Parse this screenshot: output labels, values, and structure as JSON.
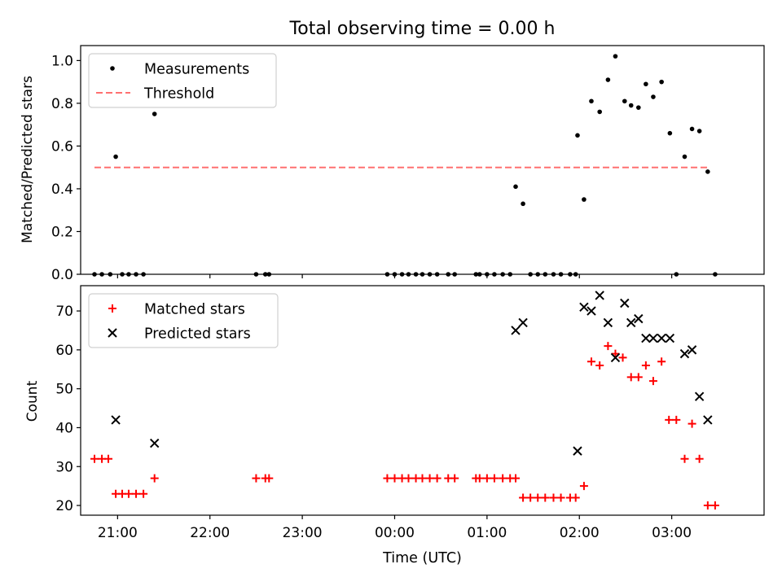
{
  "title": "Total observing time = 0.00 h",
  "xlabel": "Time (UTC)",
  "chart_data": [
    {
      "type": "scatter",
      "ylabel": "Matched/Predicted stars",
      "ylim": [
        0,
        1.07
      ],
      "yticks": [
        "0.0",
        "0.2",
        "0.4",
        "0.6",
        "0.8",
        "1.0"
      ],
      "legend": {
        "placement": "top-left",
        "entries": [
          "Measurements",
          "Threshold"
        ]
      },
      "threshold": {
        "name": "Threshold",
        "y": 0.5,
        "x_range": [
          20.75,
          27.41
        ],
        "color": "#ff7070"
      },
      "series": [
        {
          "name": "Measurements",
          "color": "#000000",
          "marker": "dot",
          "points": [
            [
              20.75,
              0
            ],
            [
              20.83,
              0
            ],
            [
              20.92,
              0
            ],
            [
              20.98,
              0.55
            ],
            [
              21.05,
              0
            ],
            [
              21.12,
              0
            ],
            [
              21.2,
              0
            ],
            [
              21.28,
              0
            ],
            [
              21.4,
              0.75
            ],
            [
              22.5,
              0
            ],
            [
              22.6,
              0
            ],
            [
              22.64,
              0
            ],
            [
              23.92,
              0
            ],
            [
              24.0,
              0
            ],
            [
              24.08,
              0
            ],
            [
              24.15,
              0
            ],
            [
              24.23,
              0
            ],
            [
              24.3,
              0
            ],
            [
              24.38,
              0
            ],
            [
              24.46,
              0
            ],
            [
              24.58,
              0
            ],
            [
              24.65,
              0
            ],
            [
              24.88,
              0
            ],
            [
              24.92,
              0
            ],
            [
              25.0,
              0
            ],
            [
              25.08,
              0
            ],
            [
              25.17,
              0
            ],
            [
              25.25,
              0
            ],
            [
              25.31,
              0.41
            ],
            [
              25.39,
              0.33
            ],
            [
              25.47,
              0
            ],
            [
              25.55,
              0
            ],
            [
              25.63,
              0
            ],
            [
              25.72,
              0
            ],
            [
              25.8,
              0
            ],
            [
              25.9,
              0
            ],
            [
              25.96,
              0
            ],
            [
              25.98,
              0.65
            ],
            [
              26.05,
              0.35
            ],
            [
              26.13,
              0.81
            ],
            [
              26.22,
              0.76
            ],
            [
              26.31,
              0.91
            ],
            [
              26.39,
              1.02
            ],
            [
              26.49,
              0.81
            ],
            [
              26.56,
              0.79
            ],
            [
              26.64,
              0.78
            ],
            [
              26.72,
              0.89
            ],
            [
              26.8,
              0.83
            ],
            [
              26.89,
              0.9
            ],
            [
              26.98,
              0.66
            ],
            [
              27.05,
              0
            ],
            [
              27.14,
              0.55
            ],
            [
              27.22,
              0.68
            ],
            [
              27.3,
              0.67
            ],
            [
              27.39,
              0.48
            ],
            [
              27.47,
              0
            ]
          ]
        }
      ]
    },
    {
      "type": "scatter",
      "ylabel": "Count",
      "ylim": [
        17.5,
        76.5
      ],
      "yticks": [
        "20",
        "30",
        "40",
        "50",
        "60",
        "70"
      ],
      "xlim": [
        20.6,
        28.0
      ],
      "xticks": [
        {
          "v": 21,
          "label": "21:00"
        },
        {
          "v": 22,
          "label": "22:00"
        },
        {
          "v": 23,
          "label": "23:00"
        },
        {
          "v": 24,
          "label": "00:00"
        },
        {
          "v": 25,
          "label": "01:00"
        },
        {
          "v": 26,
          "label": "02:00"
        },
        {
          "v": 27,
          "label": "03:00"
        }
      ],
      "legend": {
        "placement": "top-left",
        "entries": [
          "Matched stars",
          "Predicted stars"
        ]
      },
      "series": [
        {
          "name": "Matched stars",
          "color": "#ff0000",
          "marker": "plus",
          "points": [
            [
              20.75,
              32
            ],
            [
              20.83,
              32
            ],
            [
              20.9,
              32
            ],
            [
              20.98,
              23
            ],
            [
              21.05,
              23
            ],
            [
              21.12,
              23
            ],
            [
              21.2,
              23
            ],
            [
              21.28,
              23
            ],
            [
              21.4,
              27
            ],
            [
              22.5,
              27
            ],
            [
              22.6,
              27
            ],
            [
              22.64,
              27
            ],
            [
              23.92,
              27
            ],
            [
              24.0,
              27
            ],
            [
              24.08,
              27
            ],
            [
              24.15,
              27
            ],
            [
              24.23,
              27
            ],
            [
              24.3,
              27
            ],
            [
              24.38,
              27
            ],
            [
              24.46,
              27
            ],
            [
              24.58,
              27
            ],
            [
              24.65,
              27
            ],
            [
              24.88,
              27
            ],
            [
              24.92,
              27
            ],
            [
              25.0,
              27
            ],
            [
              25.08,
              27
            ],
            [
              25.17,
              27
            ],
            [
              25.25,
              27
            ],
            [
              25.31,
              27
            ],
            [
              25.39,
              22
            ],
            [
              25.47,
              22
            ],
            [
              25.55,
              22
            ],
            [
              25.63,
              22
            ],
            [
              25.72,
              22
            ],
            [
              25.8,
              22
            ],
            [
              25.9,
              22
            ],
            [
              25.96,
              22
            ],
            [
              26.05,
              25
            ],
            [
              26.13,
              57
            ],
            [
              26.22,
              56
            ],
            [
              26.31,
              61
            ],
            [
              26.39,
              59
            ],
            [
              26.47,
              58
            ],
            [
              26.56,
              53
            ],
            [
              26.64,
              53
            ],
            [
              26.72,
              56
            ],
            [
              26.8,
              52
            ],
            [
              26.89,
              57
            ],
            [
              26.97,
              42
            ],
            [
              27.05,
              42
            ],
            [
              27.14,
              32
            ],
            [
              27.22,
              41
            ],
            [
              27.3,
              32
            ],
            [
              27.39,
              20
            ],
            [
              27.47,
              20
            ]
          ]
        },
        {
          "name": "Predicted stars",
          "color": "#000000",
          "marker": "x",
          "points": [
            [
              20.98,
              42
            ],
            [
              21.4,
              36
            ],
            [
              25.31,
              65
            ],
            [
              25.39,
              67
            ],
            [
              25.98,
              34
            ],
            [
              26.05,
              71
            ],
            [
              26.13,
              70
            ],
            [
              26.22,
              74
            ],
            [
              26.31,
              67
            ],
            [
              26.39,
              58
            ],
            [
              26.49,
              72
            ],
            [
              26.56,
              67
            ],
            [
              26.64,
              68
            ],
            [
              26.72,
              63
            ],
            [
              26.8,
              63
            ],
            [
              26.89,
              63
            ],
            [
              26.98,
              63
            ],
            [
              27.14,
              59
            ],
            [
              27.22,
              60
            ],
            [
              27.3,
              48
            ],
            [
              27.39,
              42
            ]
          ]
        }
      ]
    }
  ]
}
